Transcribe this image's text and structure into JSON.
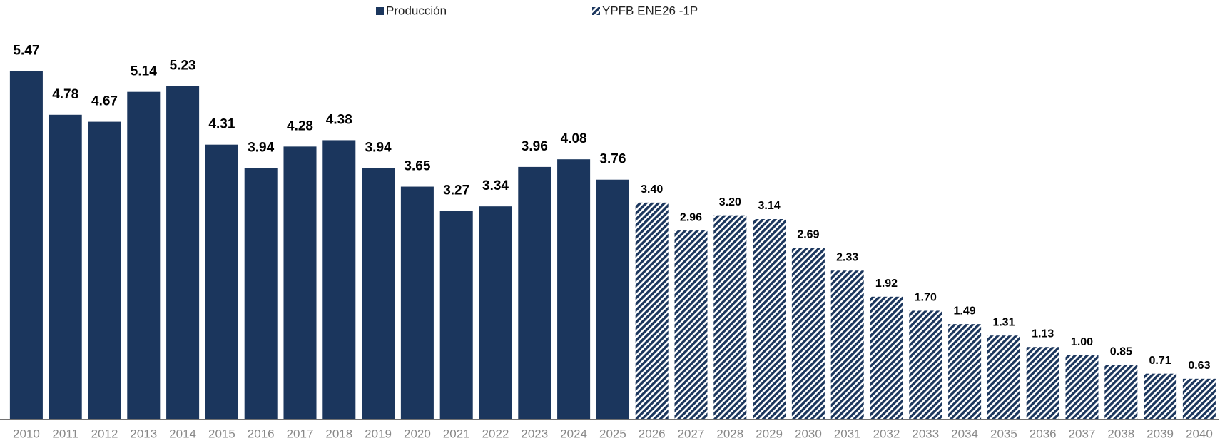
{
  "chart_data": {
    "type": "bar",
    "categories": [
      "2010",
      "2011",
      "2012",
      "2013",
      "2014",
      "2015",
      "2016",
      "2017",
      "2018",
      "2019",
      "2020",
      "2021",
      "2022",
      "2023",
      "2024",
      "2025",
      "2026",
      "2027",
      "2028",
      "2029",
      "2030",
      "2031",
      "2032",
      "2033",
      "2034",
      "2035",
      "2036",
      "2037",
      "2038",
      "2039",
      "2040"
    ],
    "series": [
      {
        "name": "Producción",
        "color": "#1b365d",
        "pattern": "solid",
        "values": [
          5.47,
          4.78,
          4.67,
          5.14,
          5.23,
          4.31,
          3.94,
          4.28,
          4.38,
          3.94,
          3.65,
          3.27,
          3.34,
          3.96,
          4.08,
          3.76,
          null,
          null,
          null,
          null,
          null,
          null,
          null,
          null,
          null,
          null,
          null,
          null,
          null,
          null,
          null
        ],
        "value_labels": [
          "5.47",
          "4.78",
          "4.67",
          "5.14",
          "5.23",
          "4.31",
          "3.94",
          "4.28",
          "4.38",
          "3.94",
          "3.65",
          "3.27",
          "3.34",
          "3.96",
          "4.08",
          "3.76",
          null,
          null,
          null,
          null,
          null,
          null,
          null,
          null,
          null,
          null,
          null,
          null,
          null,
          null,
          null
        ]
      },
      {
        "name": "YPFB ENE26 -1P",
        "color": "#1b365d",
        "pattern": "hatch",
        "values": [
          null,
          null,
          null,
          null,
          null,
          null,
          null,
          null,
          null,
          null,
          null,
          null,
          null,
          null,
          null,
          null,
          3.4,
          2.96,
          3.2,
          3.14,
          2.69,
          2.33,
          1.92,
          1.7,
          1.49,
          1.31,
          1.13,
          1.0,
          0.85,
          0.71,
          0.63
        ],
        "value_labels": [
          null,
          null,
          null,
          null,
          null,
          null,
          null,
          null,
          null,
          null,
          null,
          null,
          null,
          null,
          null,
          null,
          "3.40",
          "2.96",
          "3.20",
          "3.14",
          "2.69",
          "2.33",
          "1.92",
          "1.70",
          "1.49",
          "1.31",
          "1.13",
          "1.00",
          "0.85",
          "0.71",
          "0.63"
        ]
      }
    ],
    "ylim": [
      0,
      6
    ],
    "legend": "top"
  }
}
